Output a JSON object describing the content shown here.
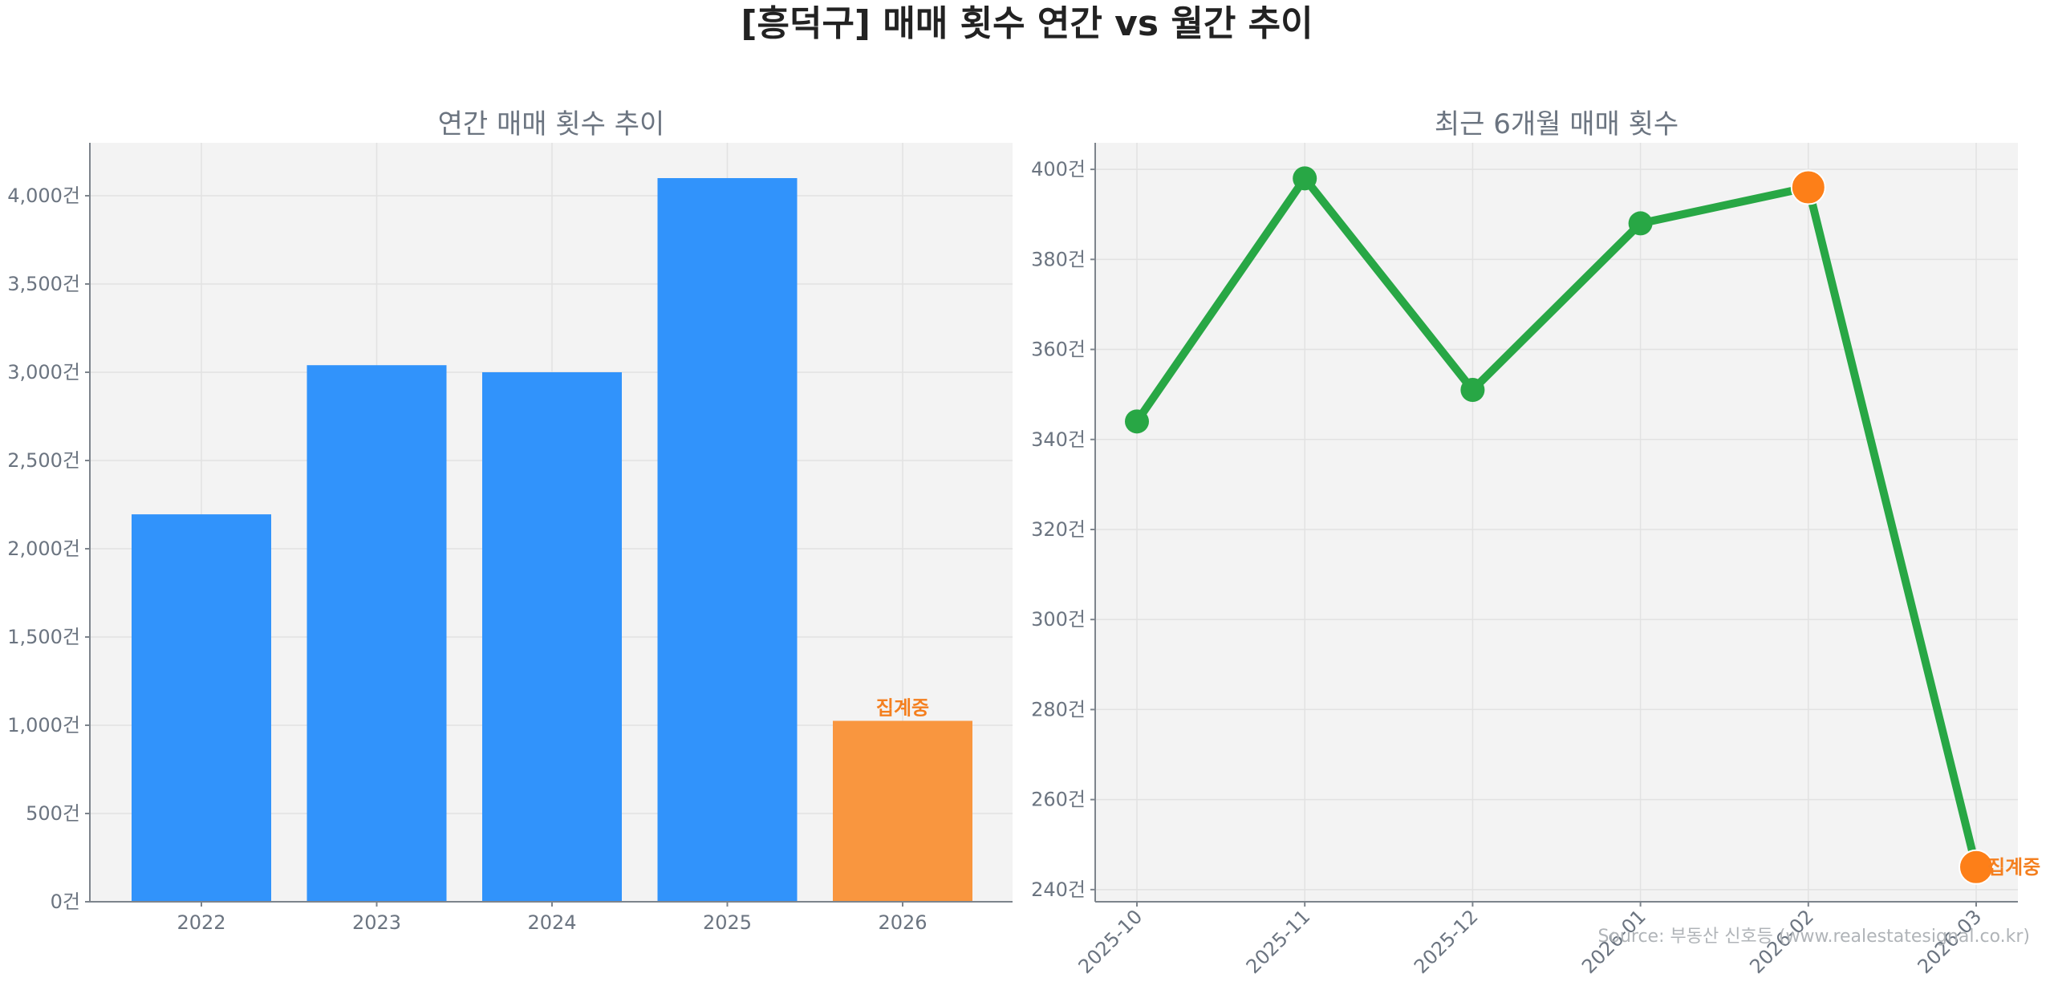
{
  "page": {
    "title": "[흥덕구] 매매 횟수 연간 vs 월간 추이",
    "source": "Source: 부동산 신호등 (www.realestatesignal.co.kr)"
  },
  "colors": {
    "bar": "#3193fb",
    "bar_pending": "#f9963f",
    "line": "#28a745",
    "marker_pending": "#fd7f18",
    "annotation": "#f47f1f",
    "plot_bg": "#f3f3f3",
    "grid": "#e2e2e2",
    "axis": "#7d848c",
    "text": "#6b7480"
  },
  "chart_data": [
    {
      "type": "bar",
      "title": "연간 매매 횟수 추이",
      "xlabel": "",
      "ylabel": "",
      "categories": [
        "2022",
        "2023",
        "2024",
        "2025",
        "2026"
      ],
      "values": [
        2195,
        3040,
        3000,
        4100,
        1025
      ],
      "unit_suffix": "건",
      "ylim": [
        0,
        4300
      ],
      "yticks": [
        0,
        500,
        1000,
        1500,
        2000,
        2500,
        3000,
        3500,
        4000
      ],
      "ytick_labels": [
        "0건",
        "500건",
        "1,000건",
        "1,500건",
        "2,000건",
        "2,500건",
        "3,000건",
        "3,500건",
        "4,000건"
      ],
      "grid": true,
      "annotations": [
        {
          "category": "2026",
          "text": "집계중"
        }
      ],
      "pending_category": "2026"
    },
    {
      "type": "line",
      "title": "최근 6개월 매매 횟수",
      "xlabel": "",
      "ylabel": "",
      "x": [
        "2025-10",
        "2025-11",
        "2025-12",
        "2026-01",
        "2026-02",
        "2026-03"
      ],
      "values": [
        344,
        398,
        351,
        388,
        396,
        245
      ],
      "unit_suffix": "건",
      "ylim": [
        237.3,
        405.9
      ],
      "yticks": [
        240,
        260,
        280,
        300,
        320,
        340,
        360,
        380,
        400
      ],
      "ytick_labels": [
        "240건",
        "260건",
        "280건",
        "300건",
        "320건",
        "340건",
        "360건",
        "380건",
        "400건"
      ],
      "grid": true,
      "highlight_points": [
        "2026-02",
        "2026-03"
      ],
      "annotations": [
        {
          "x": "2026-03",
          "text": "집계중"
        }
      ]
    }
  ]
}
